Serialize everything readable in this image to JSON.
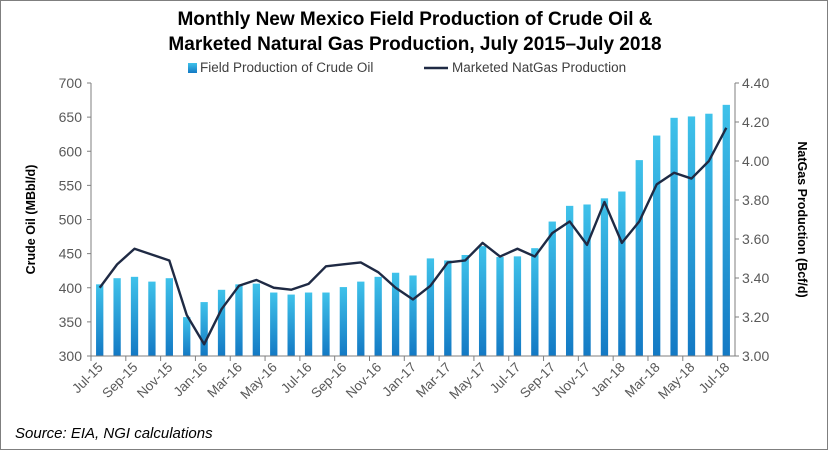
{
  "chart_data": {
    "type": "bar+line",
    "title_line1": "Monthly New Mexico Field Production of Crude Oil &",
    "title_line2": "Marketed Natural Gas Production, July 2015–July 2018",
    "ylabel_left": "Crude Oil (MBbl/d)",
    "ylabel_right": "NatGas Production (Bcf/d)",
    "ylim_left": [
      300,
      700
    ],
    "ylim_right": [
      3.0,
      4.4
    ],
    "yticks_left": [
      "300",
      "350",
      "400",
      "450",
      "500",
      "550",
      "600",
      "650",
      "700"
    ],
    "yticks_right": [
      "3.00",
      "3.20",
      "3.40",
      "3.60",
      "3.80",
      "4.00",
      "4.20",
      "4.40"
    ],
    "legend_placement": "top-center",
    "grid": false,
    "months": [
      "Jul-15",
      "Aug-15",
      "Sep-15",
      "Oct-15",
      "Nov-15",
      "Dec-15",
      "Jan-16",
      "Feb-16",
      "Mar-16",
      "Apr-16",
      "May-16",
      "Jun-16",
      "Jul-16",
      "Aug-16",
      "Sep-16",
      "Oct-16",
      "Nov-16",
      "Dec-16",
      "Jan-17",
      "Feb-17",
      "Mar-17",
      "Apr-17",
      "May-17",
      "Jun-17",
      "Jul-17",
      "Aug-17",
      "Sep-17",
      "Oct-17",
      "Nov-17",
      "Dec-17",
      "Jan-18",
      "Feb-18",
      "Mar-18",
      "Apr-18",
      "May-18",
      "Jun-18",
      "Jul-18"
    ],
    "xtick_labels": [
      "Jul-15",
      "Sep-15",
      "Nov-15",
      "Jan-16",
      "Mar-16",
      "May-16",
      "Jul-16",
      "Sep-16",
      "Nov-16",
      "Jan-17",
      "Mar-17",
      "May-17",
      "Jul-17",
      "Sep-17",
      "Nov-17",
      "Jan-18",
      "Mar-18",
      "May-18",
      "Jul-18"
    ],
    "series": [
      {
        "name": "Field Production of Crude Oil",
        "type": "bar",
        "axis": "left",
        "values": [
          405,
          414,
          416,
          409,
          414,
          357,
          379,
          397,
          405,
          406,
          393,
          390,
          393,
          393,
          401,
          409,
          416,
          422,
          418,
          443,
          440,
          448,
          461,
          445,
          446,
          458,
          497,
          520,
          522,
          531,
          541,
          587,
          623,
          649,
          651,
          655,
          668
        ]
      },
      {
        "name": "Marketed NatGas Production",
        "type": "line",
        "axis": "right",
        "values": [
          3.35,
          3.47,
          3.55,
          3.52,
          3.49,
          3.21,
          3.06,
          3.24,
          3.36,
          3.39,
          3.35,
          3.34,
          3.37,
          3.46,
          3.47,
          3.48,
          3.43,
          3.35,
          3.29,
          3.36,
          3.48,
          3.49,
          3.58,
          3.51,
          3.55,
          3.51,
          3.63,
          3.69,
          3.57,
          3.79,
          3.58,
          3.69,
          3.88,
          3.94,
          3.91,
          4.0,
          4.17
        ]
      }
    ],
    "colors": {
      "bar_light": "#3fc2ea",
      "bar_dark": "#1379c4",
      "line": "#1f2a44",
      "axis": "#7f7f7f",
      "tick_text": "#595959"
    }
  },
  "source_note": "Source: EIA, NGI calculations"
}
